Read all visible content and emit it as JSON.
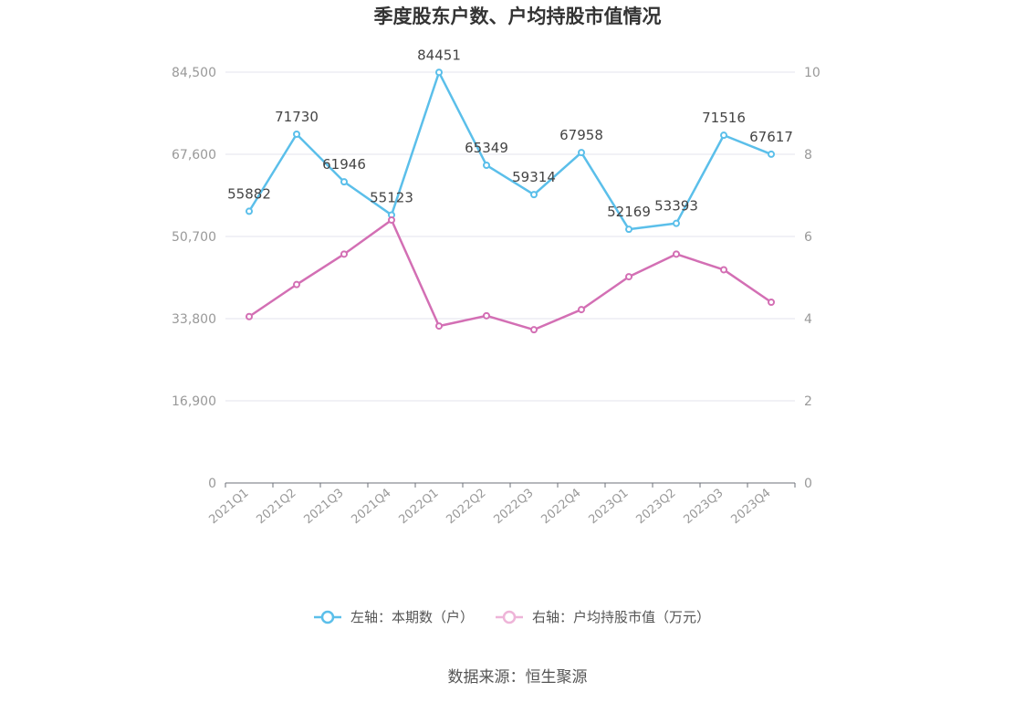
{
  "chart_data": {
    "type": "line",
    "title": "季度股东户数、户均持股市值情况",
    "categories": [
      "2021Q1",
      "2021Q2",
      "2021Q3",
      "2021Q4",
      "2022Q1",
      "2022Q2",
      "2022Q3",
      "2022Q4",
      "2023Q1",
      "2023Q2",
      "2023Q3",
      "2023Q4"
    ],
    "left_axis": {
      "min": 0,
      "max": 84500,
      "ticks": [
        "0",
        "16,900",
        "33,800",
        "50,700",
        "67,600",
        "84,500"
      ]
    },
    "right_axis": {
      "min": 0,
      "max": 10,
      "ticks": [
        "0",
        "2",
        "4",
        "6",
        "8",
        "10"
      ]
    },
    "grid": true,
    "legend_position": "bottom",
    "series": [
      {
        "name": "左轴：本期数（户）",
        "axis": "left",
        "color": "#5bbfea",
        "values": [
          55882,
          71730,
          61946,
          55123,
          84451,
          65349,
          59314,
          67958,
          52169,
          53393,
          71516,
          67617
        ],
        "labels": [
          "55882",
          "71730",
          "61946",
          "55123",
          "84451",
          "65349",
          "59314",
          "67958",
          "52169",
          "53393",
          "71516",
          "67617"
        ]
      },
      {
        "name": "右轴：户均持股市值（万元）",
        "axis": "right",
        "color": "#d36fb4",
        "values": [
          4.05,
          4.83,
          5.57,
          6.4,
          3.82,
          4.07,
          3.73,
          4.22,
          5.02,
          5.57,
          5.19,
          4.4
        ]
      }
    ]
  },
  "source": "数据来源：恒生聚源"
}
